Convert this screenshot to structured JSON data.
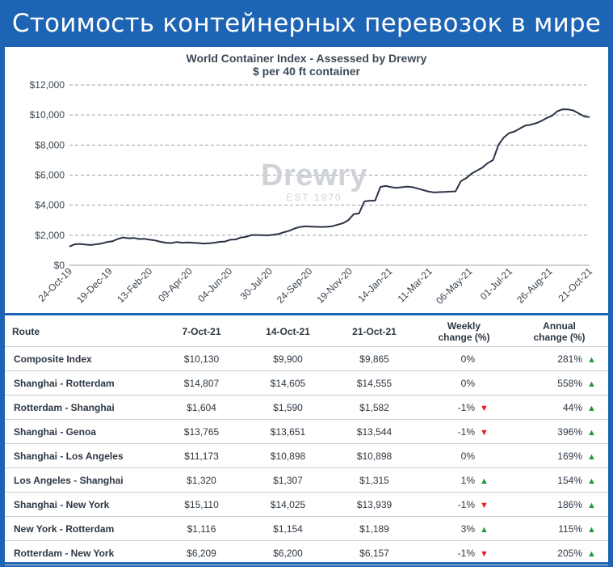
{
  "banner": {
    "title": "Стоимость контейнерных перевозок в мире"
  },
  "chart_data": {
    "type": "line",
    "title": "World Container Index - Assessed by Drewry",
    "subtitle": "$ per 40 ft container",
    "watermark": {
      "name": "Drewry",
      "est": "EST 1970"
    },
    "y_ticks": [
      "$0",
      "$2,000",
      "$4,000",
      "$6,000",
      "$8,000",
      "$10,000",
      "$12,000"
    ],
    "y_tick_values": [
      0,
      2000,
      4000,
      6000,
      8000,
      10000,
      12000
    ],
    "ylim": [
      0,
      12000
    ],
    "x_ticks": [
      "24-Oct-19",
      "19-Dec-19",
      "13-Feb-20",
      "09-Apr-20",
      "04-Jun-20",
      "30-Jul-20",
      "24-Sep-20",
      "19-Nov-20",
      "14-Jan-21",
      "11-Mar-21",
      "06-May-21",
      "01-Jul-21",
      "26-Aug-21",
      "21-Oct-21"
    ],
    "grid": "horizontal dashed",
    "line_color": "#2a3346",
    "series": [
      {
        "values": [
          1250,
          1400,
          1420,
          1380,
          1350,
          1400,
          1450,
          1550,
          1600,
          1750,
          1850,
          1800,
          1820,
          1750,
          1760,
          1700,
          1650,
          1560,
          1500,
          1480,
          1550,
          1500,
          1520,
          1500,
          1480,
          1450,
          1470,
          1500,
          1560,
          1580,
          1700,
          1720,
          1850,
          1900,
          2020,
          2010,
          2000,
          1990,
          2030,
          2080,
          2200,
          2300,
          2450,
          2550,
          2600,
          2580,
          2560,
          2550,
          2560,
          2600,
          2700,
          2800,
          3000,
          3400,
          3450,
          4250,
          4300,
          4300,
          5220,
          5280,
          5200,
          5150,
          5200,
          5230,
          5200,
          5100,
          5000,
          4900,
          4850,
          4870,
          4880,
          4900,
          4920,
          5600,
          5800,
          6100,
          6300,
          6500,
          6800,
          7000,
          8000,
          8500,
          8800,
          8900,
          9100,
          9300,
          9350,
          9450,
          9600,
          9800,
          9950,
          10250,
          10380,
          10370,
          10300,
          10100,
          9900,
          9865
        ]
      }
    ]
  },
  "table": {
    "headers": {
      "route": "Route",
      "d1": "7-Oct-21",
      "d2": "14-Oct-21",
      "d3": "21-Oct-21",
      "weekly_line1": "Weekly",
      "weekly_line2": "change (%)",
      "annual_line1": "Annual",
      "annual_line2": "change (%)"
    },
    "arrow_up": "▲",
    "arrow_down": "▼",
    "rows": [
      {
        "route": "Composite Index",
        "d1": "$10,130",
        "d2": "$9,900",
        "d3": "$9,865",
        "weekly": "0%",
        "weekly_dir": "none",
        "annual": "281%",
        "annual_dir": "up"
      },
      {
        "route": "Shanghai - Rotterdam",
        "d1": "$14,807",
        "d2": "$14,605",
        "d3": "$14,555",
        "weekly": "0%",
        "weekly_dir": "none",
        "annual": "558%",
        "annual_dir": "up"
      },
      {
        "route": "Rotterdam - Shanghai",
        "d1": "$1,604",
        "d2": "$1,590",
        "d3": "$1,582",
        "weekly": "-1%",
        "weekly_dir": "down",
        "annual": "44%",
        "annual_dir": "up"
      },
      {
        "route": "Shanghai - Genoa",
        "d1": "$13,765",
        "d2": "$13,651",
        "d3": "$13,544",
        "weekly": "-1%",
        "weekly_dir": "down",
        "annual": "396%",
        "annual_dir": "up"
      },
      {
        "route": "Shanghai - Los Angeles",
        "d1": "$11,173",
        "d2": "$10,898",
        "d3": "$10,898",
        "weekly": "0%",
        "weekly_dir": "none",
        "annual": "169%",
        "annual_dir": "up"
      },
      {
        "route": "Los Angeles - Shanghai",
        "d1": "$1,320",
        "d2": "$1,307",
        "d3": "$1,315",
        "weekly": "1%",
        "weekly_dir": "up",
        "annual": "154%",
        "annual_dir": "up"
      },
      {
        "route": "Shanghai - New York",
        "d1": "$15,110",
        "d2": "$14,025",
        "d3": "$13,939",
        "weekly": "-1%",
        "weekly_dir": "down",
        "annual": "186%",
        "annual_dir": "up"
      },
      {
        "route": "New York - Rotterdam",
        "d1": "$1,116",
        "d2": "$1,154",
        "d3": "$1,189",
        "weekly": "3%",
        "weekly_dir": "up",
        "annual": "115%",
        "annual_dir": "up"
      },
      {
        "route": "Rotterdam - New York",
        "d1": "$6,209",
        "d2": "$6,200",
        "d3": "$6,157",
        "weekly": "-1%",
        "weekly_dir": "down",
        "annual": "205%",
        "annual_dir": "up"
      }
    ]
  }
}
